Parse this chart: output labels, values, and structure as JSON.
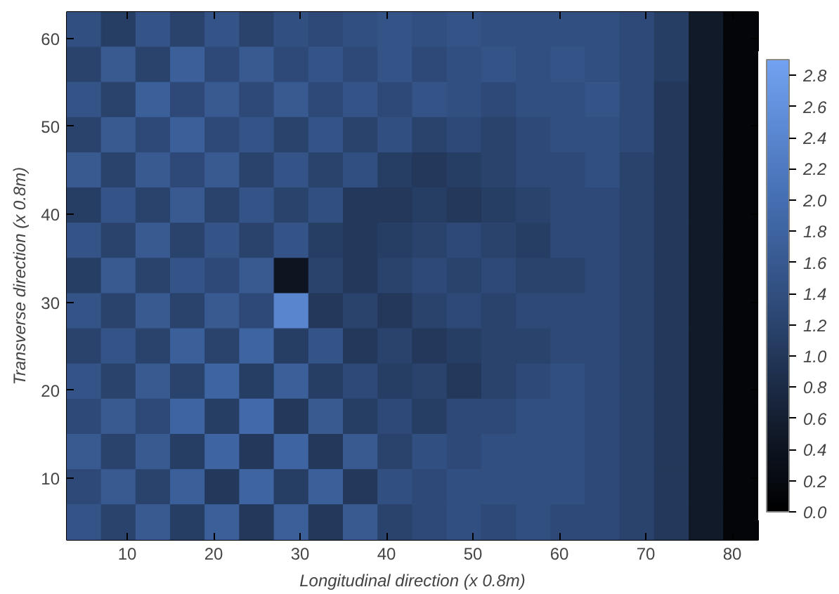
{
  "chart_data": {
    "type": "heatmap",
    "xlabel": "Longitudinal direction (x 0.8m)",
    "ylabel": "Transverse direction (x 0.8m)",
    "x": [
      5,
      9,
      13,
      17,
      21,
      25,
      29,
      33,
      37,
      41,
      45,
      49,
      53,
      57,
      61,
      65,
      69,
      73,
      77,
      81
    ],
    "y": [
      61,
      57,
      53,
      49,
      45,
      41,
      37,
      33,
      29,
      25,
      21,
      17,
      13,
      9,
      5
    ],
    "xlim": [
      3,
      83
    ],
    "ylim": [
      3,
      63
    ],
    "xticks": [
      10,
      20,
      30,
      40,
      50,
      60,
      70,
      80
    ],
    "yticks": [
      10,
      20,
      30,
      40,
      50,
      60
    ],
    "clim": [
      0,
      2.9
    ],
    "cticks": [
      {
        "value": 0,
        "label": "0.0"
      },
      0.2,
      0.4,
      0.6,
      0.8,
      {
        "value": 1,
        "label": "1.0"
      },
      1.2,
      1.4,
      1.6,
      1.8,
      {
        "value": 2,
        "label": "2.0"
      },
      2.2,
      2.4,
      2.6,
      2.8
    ],
    "cells": [
      [
        1.4,
        1.1,
        1.5,
        1.2,
        1.5,
        1.2,
        1.4,
        1.3,
        1.4,
        1.5,
        1.4,
        1.5,
        1.4,
        1.4,
        1.4,
        1.4,
        1.3,
        1.1,
        0.5,
        0.1
      ],
      [
        1.2,
        1.6,
        1.2,
        1.7,
        1.3,
        1.6,
        1.3,
        1.5,
        1.3,
        1.5,
        1.3,
        1.4,
        1.5,
        1.4,
        1.5,
        1.4,
        1.3,
        1.1,
        0.5,
        0.1
      ],
      [
        1.5,
        1.2,
        1.7,
        1.3,
        1.6,
        1.3,
        1.6,
        1.3,
        1.5,
        1.3,
        1.5,
        1.4,
        1.3,
        1.4,
        1.4,
        1.5,
        1.3,
        1.0,
        0.5,
        0.1
      ],
      [
        1.2,
        1.6,
        1.3,
        1.7,
        1.3,
        1.5,
        1.2,
        1.5,
        1.2,
        1.4,
        1.2,
        1.3,
        1.2,
        1.3,
        1.4,
        1.4,
        1.3,
        1.0,
        0.5,
        0.1
      ],
      [
        1.6,
        1.2,
        1.6,
        1.3,
        1.6,
        1.2,
        1.5,
        1.2,
        1.4,
        1.1,
        1.0,
        1.1,
        1.2,
        1.3,
        1.3,
        1.4,
        1.2,
        1.0,
        0.5,
        0.1
      ],
      [
        1.1,
        1.5,
        1.2,
        1.6,
        1.2,
        1.5,
        1.2,
        1.4,
        1.0,
        1.0,
        1.1,
        1.0,
        1.1,
        1.2,
        1.3,
        1.3,
        1.2,
        1.0,
        0.5,
        0.1
      ],
      [
        1.5,
        1.2,
        1.6,
        1.2,
        1.5,
        1.2,
        1.5,
        1.1,
        1.0,
        1.1,
        1.2,
        1.3,
        1.2,
        1.1,
        1.3,
        1.3,
        1.2,
        1.0,
        0.5,
        0.1
      ],
      [
        1.1,
        1.6,
        1.2,
        1.5,
        1.3,
        1.6,
        0.4,
        1.2,
        1.0,
        1.2,
        1.3,
        1.2,
        1.3,
        1.2,
        1.2,
        1.3,
        1.2,
        1.0,
        0.5,
        0.1
      ],
      [
        1.5,
        1.2,
        1.6,
        1.2,
        1.6,
        1.3,
        2.4,
        1.0,
        1.2,
        1.0,
        1.2,
        1.3,
        1.2,
        1.3,
        1.3,
        1.3,
        1.2,
        1.0,
        0.5,
        0.1
      ],
      [
        1.2,
        1.5,
        1.2,
        1.7,
        1.2,
        1.8,
        1.1,
        1.5,
        1.0,
        1.2,
        1.0,
        1.1,
        1.2,
        1.2,
        1.3,
        1.3,
        1.2,
        1.0,
        0.5,
        0.1
      ],
      [
        1.5,
        1.2,
        1.6,
        1.2,
        1.8,
        1.1,
        1.7,
        1.1,
        1.3,
        1.1,
        1.2,
        1.0,
        1.2,
        1.3,
        1.4,
        1.3,
        1.2,
        1.0,
        0.5,
        0.1
      ],
      [
        1.3,
        1.6,
        1.3,
        1.8,
        1.1,
        1.9,
        1.0,
        1.6,
        1.1,
        1.3,
        1.1,
        1.3,
        1.3,
        1.4,
        1.4,
        1.3,
        1.2,
        1.0,
        0.5,
        0.1
      ],
      [
        1.6,
        1.2,
        1.6,
        1.1,
        1.8,
        1.0,
        1.8,
        1.0,
        1.6,
        1.2,
        1.4,
        1.3,
        1.4,
        1.4,
        1.4,
        1.3,
        1.2,
        1.0,
        0.5,
        0.1
      ],
      [
        1.3,
        1.6,
        1.2,
        1.7,
        1.0,
        1.8,
        1.1,
        1.7,
        1.0,
        1.4,
        1.3,
        1.4,
        1.4,
        1.4,
        1.4,
        1.3,
        1.2,
        1.0,
        0.5,
        0.1
      ],
      [
        1.5,
        1.2,
        1.6,
        1.1,
        1.7,
        1.0,
        1.7,
        1.0,
        1.6,
        1.2,
        1.3,
        1.4,
        1.3,
        1.4,
        1.3,
        1.3,
        1.2,
        1.0,
        0.5,
        0.1
      ]
    ]
  }
}
